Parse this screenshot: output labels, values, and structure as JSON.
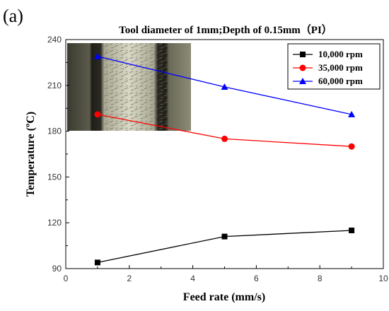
{
  "panel_label": "(a)",
  "chart_data": {
    "type": "line",
    "title": "Tool diameter of 1mm;Depth of  0.15mm（PI）",
    "xlabel": "Feed rate (mm/s)",
    "ylabel": "Temperature (ºC)",
    "xlim": [
      0,
      10
    ],
    "ylim": [
      90,
      240
    ],
    "x_ticks": [
      0,
      2,
      4,
      6,
      8,
      10
    ],
    "y_ticks": [
      90,
      120,
      150,
      180,
      210,
      240
    ],
    "grid": false,
    "legend_position": "top-right",
    "x": [
      1,
      5,
      9
    ],
    "series": [
      {
        "name": "10,000 rpm",
        "color": "#000000",
        "marker": "square",
        "values": [
          94,
          111,
          115
        ]
      },
      {
        "name": "35,000 rpm",
        "color": "#ff0000",
        "marker": "circle",
        "values": [
          191,
          175,
          170
        ]
      },
      {
        "name": "60,000 rpm",
        "color": "#0000ff",
        "marker": "triangle",
        "values": [
          229,
          209,
          191
        ]
      }
    ],
    "inset": "micrograph-photo"
  }
}
